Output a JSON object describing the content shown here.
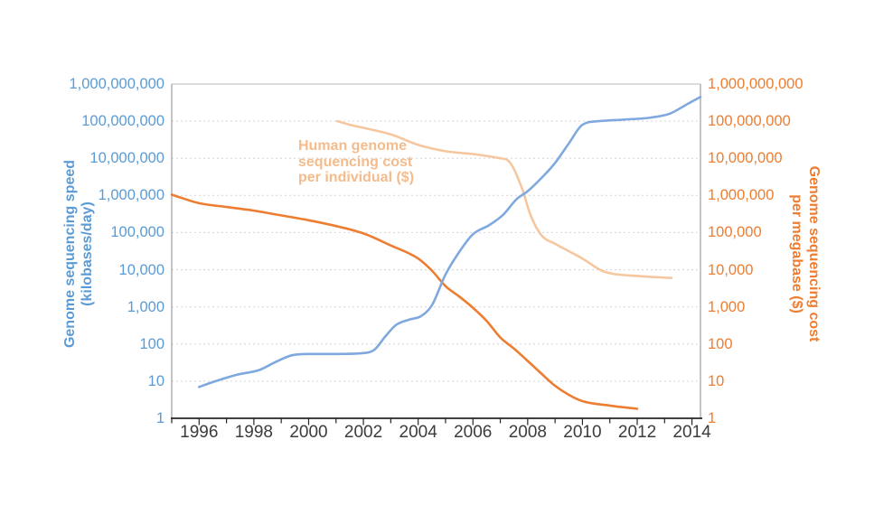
{
  "chart_data": {
    "type": "line",
    "title": "",
    "background": "#ffffff",
    "x_axis": {
      "range": [
        1995,
        2014.31
      ],
      "major_ticks": [
        1996,
        1998,
        2000,
        2002,
        2004,
        2006,
        2008,
        2010,
        2012,
        2014
      ],
      "minor_tick_years": [
        1995,
        1996,
        1997,
        1998,
        1999,
        2000,
        2001,
        2002,
        2003,
        2004,
        2005,
        2006,
        2007,
        2008,
        2009,
        2010,
        2011,
        2012,
        2013,
        2014
      ],
      "axis_color": "#262626",
      "label_color": "#3C3C3C"
    },
    "y_axis_left": {
      "title_line1": "Genome sequencing speed",
      "title_line2": "(kilobases/day)",
      "scale": "log",
      "range": [
        1,
        1000000000
      ],
      "color": "#5B9BD5",
      "tick_labels": [
        "1",
        "10",
        "100",
        "1,000",
        "10,000",
        "100,000",
        "1,000,000",
        "10,000,000",
        "100,000,000",
        "1,000,000,000"
      ]
    },
    "y_axis_right": {
      "title_line1": "Genome sequencing cost",
      "title_line2": "per megabase ($)",
      "scale": "log",
      "range": [
        1,
        1000000000
      ],
      "color": "#ED7D31",
      "tick_labels": [
        "1",
        "10",
        "100",
        "1,000",
        "10,000",
        "100,000",
        "1,000,000",
        "10,000,000",
        "100,000,000",
        "1,000,000,000"
      ]
    },
    "grid": {
      "show_horizontal": true,
      "style": "dashed",
      "color": "#D9D9D9",
      "border_color": "#ABABAB"
    },
    "annotation": {
      "line1": "Human genome",
      "line2": "sequencing cost",
      "line3": "per individual ($)",
      "color": "#F4BC8C"
    },
    "series": [
      {
        "name": "Human genome sequencing cost per individual ($)",
        "axis": "right",
        "color": "#F6C79E",
        "points": [
          [
            2001.05,
            100000000
          ],
          [
            2001.5,
            80000000
          ],
          [
            2002,
            66000000
          ],
          [
            2003,
            44000000
          ],
          [
            2004,
            23000000
          ],
          [
            2005,
            15500000
          ],
          [
            2006,
            13000000
          ],
          [
            2007,
            10000000
          ],
          [
            2007.3,
            8500000
          ],
          [
            2007.8,
            1500000
          ],
          [
            2008.1,
            300000
          ],
          [
            2008.5,
            85000
          ],
          [
            2009,
            50000
          ],
          [
            2010,
            20000
          ],
          [
            2010.7,
            9500
          ],
          [
            2011.1,
            7800
          ],
          [
            2012,
            6800
          ],
          [
            2013.25,
            6000
          ]
        ]
      },
      {
        "name": "Genome sequencing cost per megabase ($)",
        "axis": "right",
        "color": "#ED7D31",
        "points": [
          [
            1995,
            1050000
          ],
          [
            1996,
            620000
          ],
          [
            1997,
            490000
          ],
          [
            1998,
            390000
          ],
          [
            1999,
            290000
          ],
          [
            2000,
            215000
          ],
          [
            2001,
            150000
          ],
          [
            2002,
            95000
          ],
          [
            2003,
            45000
          ],
          [
            2004,
            20000
          ],
          [
            2004.5,
            9500
          ],
          [
            2005,
            3600
          ],
          [
            2005.5,
            1900
          ],
          [
            2006,
            950
          ],
          [
            2006.5,
            420
          ],
          [
            2007,
            150
          ],
          [
            2007.5,
            75
          ],
          [
            2008,
            35
          ],
          [
            2008.5,
            16
          ],
          [
            2009,
            7.5
          ],
          [
            2009.5,
            4.3
          ],
          [
            2010,
            2.9
          ],
          [
            2011,
            2.2
          ],
          [
            2012,
            1.8
          ]
        ]
      },
      {
        "name": "Genome sequencing speed (kilobases/day)",
        "axis": "left",
        "color": "#7FA9DE",
        "points": [
          [
            1996,
            7
          ],
          [
            1996.6,
            10
          ],
          [
            1997.4,
            15
          ],
          [
            1998.2,
            20
          ],
          [
            1998.8,
            33
          ],
          [
            1999.4,
            50
          ],
          [
            2000,
            54
          ],
          [
            2001,
            54
          ],
          [
            2002,
            57
          ],
          [
            2002.4,
            70
          ],
          [
            2002.8,
            160
          ],
          [
            2003.2,
            330
          ],
          [
            2003.7,
            460
          ],
          [
            2004.1,
            560
          ],
          [
            2004.5,
            1100
          ],
          [
            2005,
            7500
          ],
          [
            2005.5,
            30000
          ],
          [
            2006,
            90000
          ],
          [
            2006.6,
            160000
          ],
          [
            2007.1,
            300000
          ],
          [
            2007.6,
            800000
          ],
          [
            2008,
            1300000
          ],
          [
            2008.6,
            3500000
          ],
          [
            2009,
            7500000
          ],
          [
            2009.5,
            25000000
          ],
          [
            2010,
            80000000
          ],
          [
            2010.6,
            100000000
          ],
          [
            2011.5,
            110000000
          ],
          [
            2012.5,
            125000000
          ],
          [
            2013.2,
            160000000
          ],
          [
            2013.8,
            280000000
          ],
          [
            2014.31,
            450000000
          ]
        ]
      }
    ]
  }
}
